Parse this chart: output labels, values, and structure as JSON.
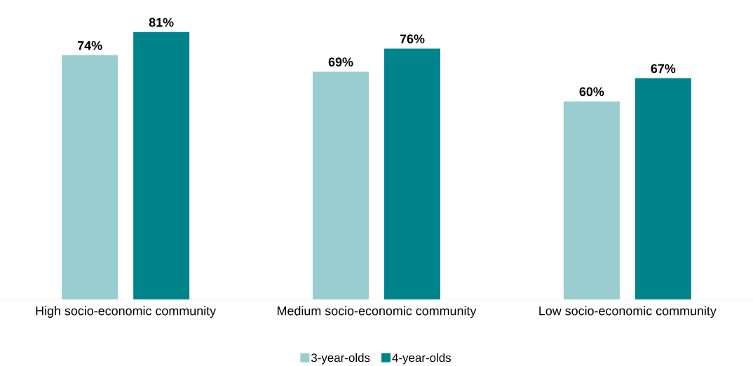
{
  "chart_data": {
    "type": "bar",
    "categories": [
      "High socio-economic community",
      "Medium socio-economic community",
      "Low socio-economic community"
    ],
    "series": [
      {
        "name": "3-year-olds",
        "color": "#99cdd0",
        "values": [
          74,
          69,
          60
        ],
        "value_labels": [
          "74%",
          "69%",
          "60%"
        ]
      },
      {
        "name": "4-year-olds",
        "color": "#00838a",
        "values": [
          81,
          76,
          67
        ],
        "value_labels": [
          "81%",
          "76%",
          "67%"
        ]
      }
    ],
    "legend": "bottom"
  }
}
